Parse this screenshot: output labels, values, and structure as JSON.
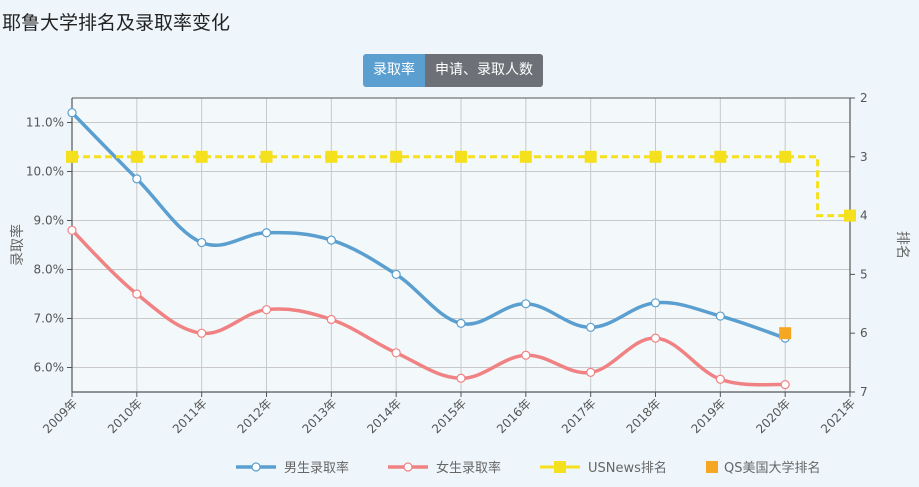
{
  "page": {
    "title": "耶鲁大学排名及录取率变化",
    "tabs": [
      {
        "label": "录取率",
        "active": true
      },
      {
        "label": "申请、录取人数",
        "active": false
      }
    ]
  },
  "chart_data": {
    "type": "line",
    "title": "",
    "categories": [
      "2009年",
      "2010年",
      "2011年",
      "2012年",
      "2013年",
      "2014年",
      "2015年",
      "2016年",
      "2017年",
      "2018年",
      "2019年",
      "2020年",
      "2021年"
    ],
    "y_left": {
      "label": "录取率",
      "ylim": [
        5.5,
        11.5
      ],
      "ticks": [
        6.0,
        7.0,
        8.0,
        9.0,
        10.0,
        11.0
      ],
      "tick_labels": [
        "6.0%",
        "7.0%",
        "8.0%",
        "9.0%",
        "10.0%",
        "11.0%"
      ]
    },
    "y_right": {
      "label": "排名",
      "ylim": [
        2,
        7
      ],
      "reversed": true,
      "ticks": [
        2,
        3,
        4,
        5,
        6,
        7
      ],
      "tick_labels": [
        "2",
        "3",
        "4",
        "5",
        "6",
        "7"
      ]
    },
    "grid": true,
    "legend_position": "bottom",
    "series": [
      {
        "name": "男生录取率",
        "axis": "left",
        "kind": "smooth-line",
        "color": "#5a9fcf",
        "values": [
          11.2,
          9.85,
          8.55,
          8.75,
          8.6,
          7.9,
          6.9,
          7.3,
          6.82,
          7.32,
          7.05,
          6.6,
          null
        ]
      },
      {
        "name": "女生录取率",
        "axis": "left",
        "kind": "smooth-line",
        "color": "#f08283",
        "values": [
          8.8,
          7.5,
          6.7,
          7.18,
          6.98,
          6.3,
          5.78,
          6.25,
          5.9,
          6.6,
          5.76,
          5.65,
          null
        ]
      },
      {
        "name": "USNews排名",
        "axis": "right",
        "kind": "step-line",
        "color": "#f4e01c",
        "values": [
          3,
          3,
          3,
          3,
          3,
          3,
          3,
          3,
          3,
          3,
          3,
          3,
          4
        ]
      },
      {
        "name": "QS美国大学排名",
        "axis": "right",
        "kind": "scatter",
        "color": "#f5a623",
        "values": [
          null,
          null,
          null,
          null,
          null,
          null,
          null,
          null,
          null,
          null,
          null,
          6,
          null
        ]
      }
    ]
  }
}
